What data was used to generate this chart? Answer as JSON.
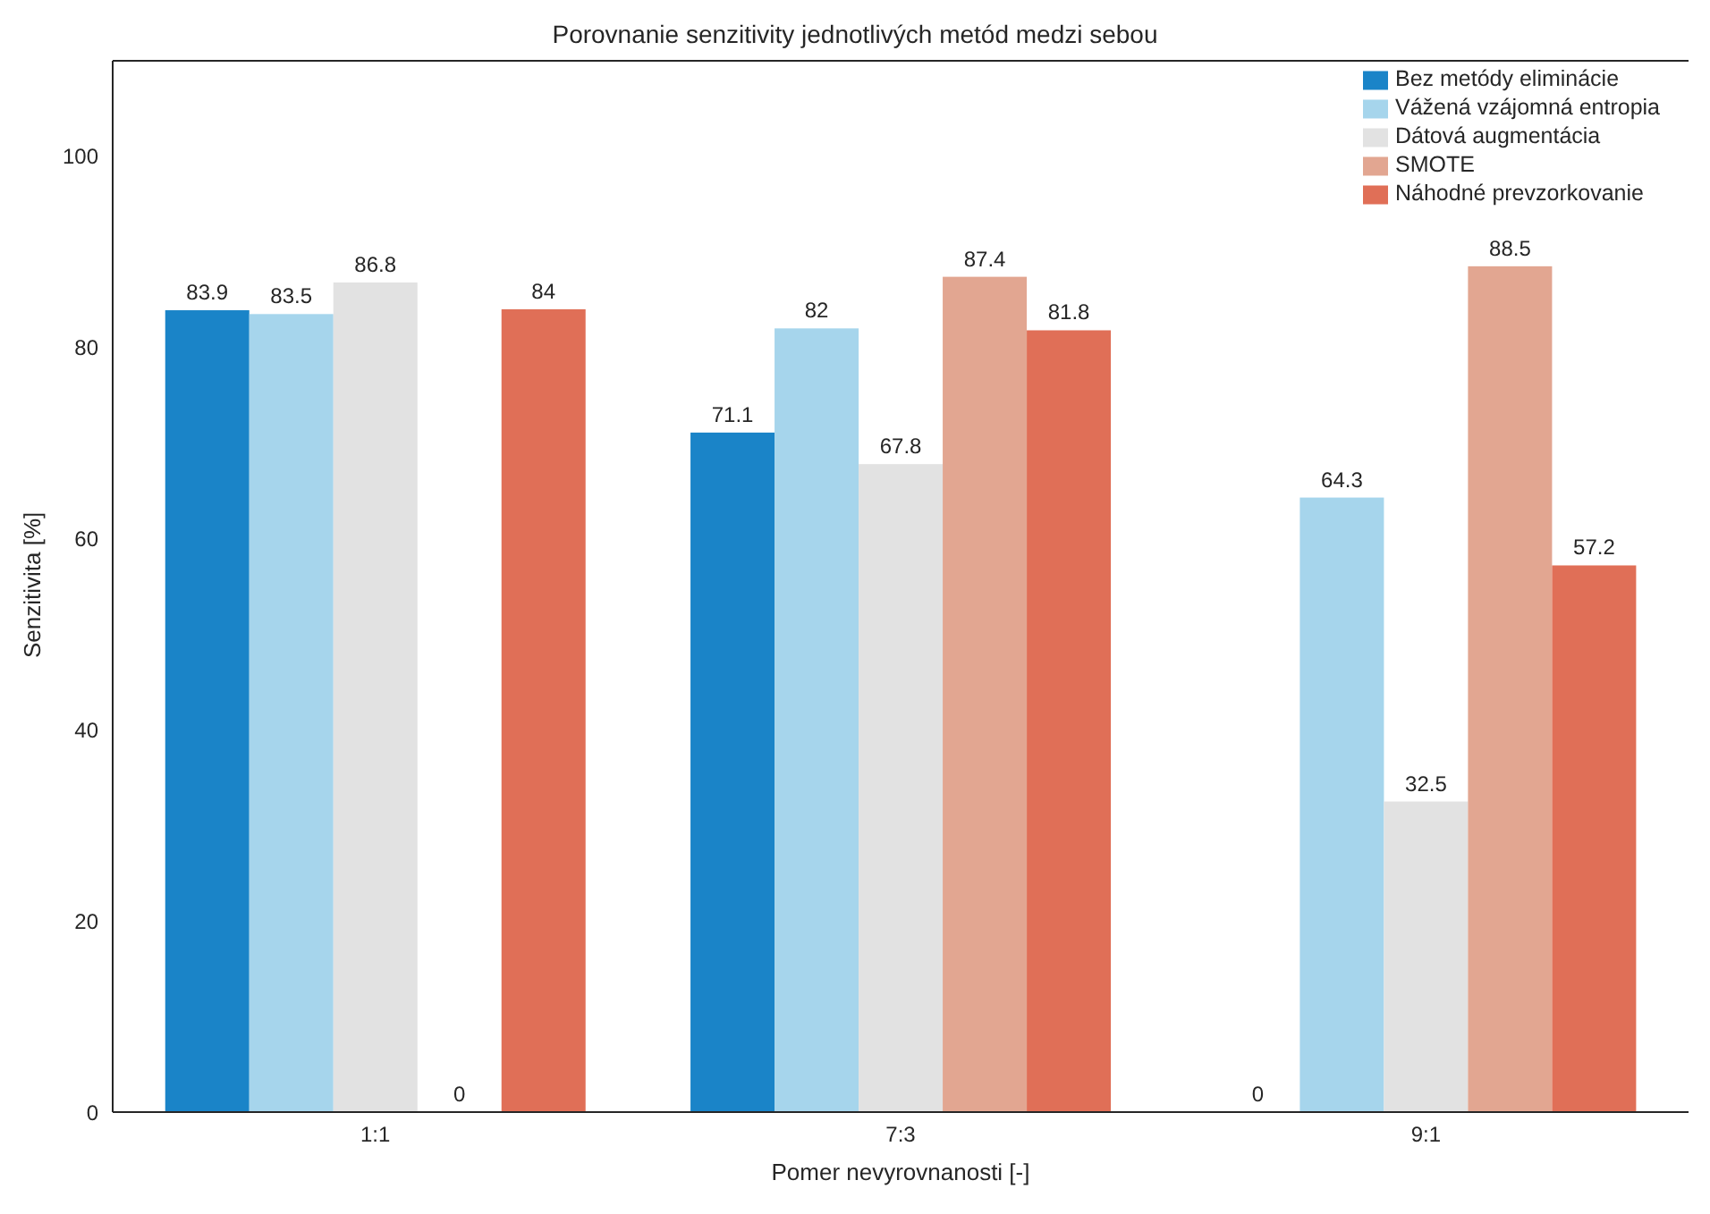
{
  "chart_data": {
    "type": "bar",
    "title": "Porovnanie senzitivity jednotlivých metód medzi sebou",
    "xlabel": "Pomer nevyrovnanosti [-]",
    "ylabel": "Senzitivita [%]",
    "categories": [
      "1:1",
      "7:3",
      "9:1"
    ],
    "series": [
      {
        "name": "Bez metódy eliminácie",
        "color": "#1a84c8",
        "values": [
          83.9,
          71.1,
          0
        ]
      },
      {
        "name": "Vážená vzájomná entropia",
        "color": "#a6d5ec",
        "values": [
          83.5,
          82,
          64.3
        ]
      },
      {
        "name": "Dátová augmentácia",
        "color": "#e2e2e2",
        "values": [
          86.8,
          67.8,
          32.5
        ]
      },
      {
        "name": "SMOTE",
        "color": "#e2a691",
        "values": [
          0,
          87.4,
          88.5
        ]
      },
      {
        "name": "Náhodné prevzorkovanie",
        "color": "#e06f57",
        "values": [
          84,
          81.8,
          57.2
        ]
      }
    ],
    "ylim": [
      0,
      110
    ],
    "yticks": [
      0,
      20,
      40,
      60,
      80,
      100
    ],
    "grid": false,
    "legend": "top right",
    "data_labels": true
  }
}
